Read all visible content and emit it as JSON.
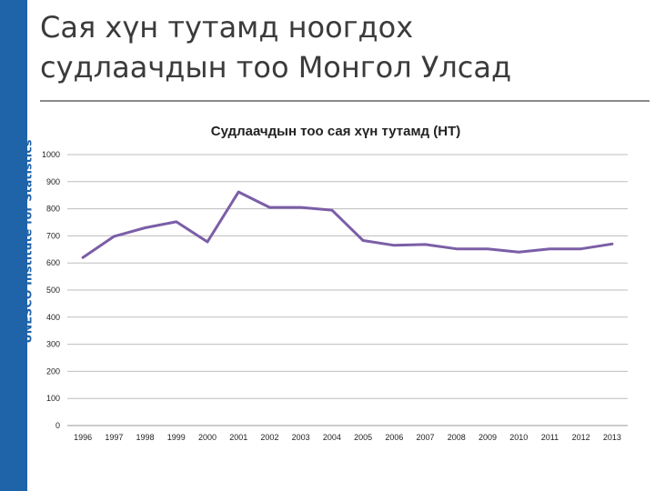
{
  "slide": {
    "title_line1": "Сая хүн тутамд ноогдох",
    "title_line2": "судлаачдын тоо Монгол Улсад",
    "side_caption": "UNESCO Institute for Statistics",
    "accent_color": "#1f63a8"
  },
  "chart_data": {
    "type": "line",
    "title": "Судлаачдын тоо сая хүн тутамд (НТ)",
    "xlabel": "",
    "ylabel": "",
    "categories": [
      "1996",
      "1997",
      "1998",
      "1999",
      "2000",
      "2001",
      "2002",
      "2003",
      "2004",
      "2005",
      "2006",
      "2007",
      "2008",
      "2009",
      "2010",
      "2011",
      "2012",
      "2013"
    ],
    "series": [
      {
        "values": [
          620,
          698,
          730,
          752,
          678,
          862,
          805,
          805,
          795,
          683,
          665,
          668,
          652,
          652,
          640,
          652,
          652,
          670
        ],
        "color": "#7b5ea7"
      }
    ],
    "ylim": [
      0,
      1000
    ],
    "yticks": [
      0,
      100,
      200,
      300,
      400,
      500,
      600,
      700,
      800,
      900,
      1000
    ],
    "grid": true
  }
}
